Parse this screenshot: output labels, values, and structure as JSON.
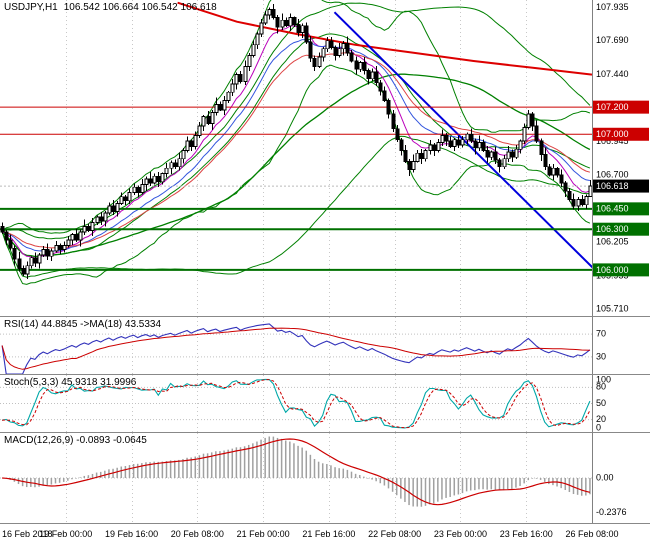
{
  "window": {
    "symbol_title": "USDJPY,H1",
    "ohlc_values": "106.542 106.664 106.542 106.618"
  },
  "colors": {
    "background": "#ffffff",
    "grid": "#c8c8c8",
    "border": "#808080",
    "candle_up_fill": "#ffffff",
    "candle_down_fill": "#000000",
    "candle_stroke": "#000000",
    "bollinger": "#008000",
    "ema_fast_magenta": "#bb00bb",
    "ema_fast_blue": "#3355dd",
    "ema_fast_red": "#dd4444",
    "red_long_ma": "#dd0000",
    "trendline_blue": "#0000dd",
    "level_red": "#cc0000",
    "level_green": "#007000",
    "price_tag_black": "#000000",
    "current_line": "#bbbbbb",
    "rsi_line": "#3333bb",
    "rsi_ma": "#cc0000",
    "stoch_main": "#00a8a8",
    "stoch_signal": "#cc0000",
    "macd_hist": "#a0a0a0",
    "macd_signal": "#cc0000",
    "axis_text": "#000000",
    "dotted_level": "#c0c0c0"
  },
  "chart_data": {
    "type": "candlestick",
    "symbol": "USDJPY",
    "timeframe": "H1",
    "title": "USDJPY,H1 106.542 106.664 106.542 106.618",
    "last_candle": {
      "open": 106.542,
      "high": 106.664,
      "low": 106.542,
      "close": 106.618
    },
    "x_axis": {
      "labels": [
        "16 Feb 2018",
        "19 Feb 00:00",
        "19 Feb 16:00",
        "20 Feb 08:00",
        "21 Feb 00:00",
        "21 Feb 16:00",
        "22 Feb 08:00",
        "23 Feb 00:00",
        "23 Feb 16:00",
        "26 Feb 08:00"
      ],
      "candles_per_gridline": 16
    },
    "y_axis": {
      "min": 105.66,
      "max": 107.99,
      "plain_ticks": [
        107.935,
        107.69,
        107.44,
        106.945,
        106.7,
        106.205,
        105.955,
        105.71
      ]
    },
    "levels": [
      {
        "value": 107.2,
        "colorKey": "level_red",
        "width": 1
      },
      {
        "value": 107.0,
        "colorKey": "level_red",
        "width": 1
      },
      {
        "value": 106.45,
        "colorKey": "level_green",
        "width": 2
      },
      {
        "value": 106.3,
        "colorKey": "level_green",
        "width": 2
      },
      {
        "value": 106.0,
        "colorKey": "level_green",
        "width": 2
      }
    ],
    "current_price_tag": "106.618",
    "candles": {
      "first_open": 106.32,
      "closes": [
        106.28,
        106.22,
        106.16,
        106.08,
        106.01,
        105.97,
        106.03,
        106.09,
        106.05,
        106.11,
        106.15,
        106.1,
        106.14,
        106.18,
        106.15,
        106.18,
        106.22,
        106.26,
        106.22,
        106.28,
        106.32,
        106.29,
        106.35,
        106.39,
        106.36,
        106.42,
        106.47,
        106.43,
        106.49,
        106.54,
        106.51,
        106.57,
        106.61,
        106.57,
        106.63,
        106.67,
        106.64,
        106.69,
        106.65,
        106.71,
        106.75,
        106.79,
        106.76,
        106.82,
        106.88,
        106.95,
        106.91,
        106.99,
        107.06,
        107.13,
        107.08,
        107.16,
        107.22,
        107.18,
        107.25,
        107.31,
        107.37,
        107.44,
        107.39,
        107.5,
        107.58,
        107.66,
        107.74,
        107.82,
        107.88,
        107.92,
        107.86,
        107.79,
        107.84,
        107.8,
        107.86,
        107.81,
        107.75,
        107.8,
        107.68,
        107.56,
        107.5,
        107.57,
        107.63,
        107.69,
        107.64,
        107.58,
        107.63,
        107.67,
        107.6,
        107.54,
        107.48,
        107.53,
        107.47,
        107.41,
        107.46,
        107.38,
        107.32,
        107.25,
        107.15,
        107.04,
        106.96,
        106.88,
        106.8,
        106.74,
        106.8,
        106.86,
        106.82,
        106.88,
        106.92,
        106.88,
        106.94,
        106.99,
        106.95,
        106.91,
        106.96,
        106.92,
        106.96,
        107.0,
        106.95,
        106.9,
        106.94,
        106.88,
        106.83,
        106.87,
        106.81,
        106.76,
        106.82,
        106.87,
        106.83,
        106.89,
        106.95,
        107.05,
        107.15,
        107.06,
        106.95,
        106.85,
        106.76,
        106.7,
        106.75,
        106.7,
        106.64,
        106.58,
        106.52,
        106.47,
        106.52,
        106.48,
        106.542,
        106.618
      ],
      "wick_amp": 0.032,
      "wick_high_pattern": [
        0.9,
        0.4,
        1.3,
        0.6,
        1.6,
        0.7,
        1.0,
        0.3,
        1.2,
        0.5,
        0.8,
        1.4,
        0.6,
        1.0,
        0.4,
        0.9
      ],
      "wick_low_pattern": [
        0.5,
        1.1,
        0.4,
        1.5,
        0.7,
        0.3,
        1.2,
        0.6,
        0.9,
        1.3,
        0.5,
        0.8,
        1.1,
        0.4,
        1.0,
        0.7
      ],
      "forced_high": {
        "index": 65,
        "value": 107.935
      },
      "forced_low": {
        "index": 5,
        "value": 105.955
      }
    },
    "overlays": {
      "bollinger_short": {
        "period": 20,
        "deviation": 2
      },
      "bollinger_long": {
        "period": 55,
        "deviation": 1.5
      },
      "ema_fast": [
        {
          "period": 8,
          "colorKey": "ema_fast_magenta"
        },
        {
          "period": 16,
          "colorKey": "ema_fast_blue"
        },
        {
          "period": 24,
          "colorKey": "ema_fast_red"
        }
      ],
      "red_ma_path": {
        "points": [
          [
            0.3,
            107.97
          ],
          [
            0.4,
            107.83
          ],
          [
            0.5,
            107.74
          ],
          [
            0.6,
            107.66
          ],
          [
            0.7,
            107.6
          ],
          [
            0.8,
            107.54
          ],
          [
            0.9,
            107.49
          ],
          [
            1.0,
            107.44
          ]
        ]
      },
      "trendline": {
        "x1_frac": 0.565,
        "price1": 107.9,
        "x2_frac": 1.005,
        "price2": 106.0
      }
    },
    "indicators": {
      "rsi": {
        "label": "RSI(14) 44.8845  ->MA(18) 43.5334",
        "period": 14,
        "ma_period": 18,
        "levels": [
          70,
          30
        ],
        "range": [
          0,
          100
        ]
      },
      "stoch": {
        "label": "Stoch(5,3,3) 45.9318 31.9996",
        "k_period": 5,
        "d_period": 3,
        "slowing": 3,
        "ticks": [
          100,
          80,
          50,
          20,
          0
        ],
        "dotted": [
          80,
          50,
          20
        ],
        "range": [
          -3,
          103
        ]
      },
      "macd": {
        "label": "MACD(12,26,9) -0.0893 -0.0645",
        "fast": 12,
        "slow": 26,
        "signal": 9,
        "ticks": [
          {
            "value": 0,
            "label": "0.00"
          },
          {
            "value": -0.2376,
            "label": "-0.2376"
          }
        ],
        "range": [
          -0.31,
          0.31
        ]
      }
    }
  }
}
